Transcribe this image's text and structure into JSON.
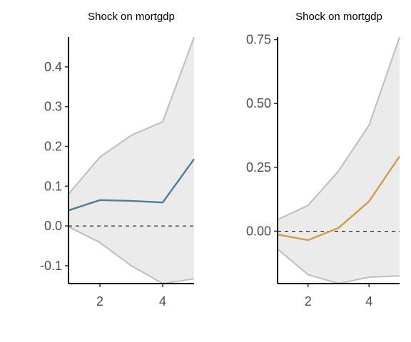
{
  "chart_data": [
    {
      "type": "line",
      "title": "Shock on mortgdp",
      "x": [
        1,
        2,
        3,
        4,
        5
      ],
      "xticks": [
        "2",
        "4"
      ],
      "xtick_values": [
        2,
        4
      ],
      "xlim": [
        1,
        5
      ],
      "ylim": [
        -0.145,
        0.475
      ],
      "yticks": [
        "-0.1",
        "0.0",
        "0.1",
        "0.2",
        "0.3",
        "0.4"
      ],
      "ytick_values": [
        -0.1,
        0.0,
        0.1,
        0.2,
        0.3,
        0.4
      ],
      "zero_line": 0,
      "series": [
        {
          "values": [
            0.039,
            0.065,
            0.063,
            0.059,
            0.168
          ],
          "color": "#4e7a9b"
        }
      ],
      "band": {
        "upper": [
          0.08,
          0.173,
          0.228,
          0.262,
          0.475
        ],
        "lower": [
          -0.002,
          -0.042,
          -0.1,
          -0.145,
          -0.133
        ],
        "fill": "#ebebeb",
        "stroke": "#bebebe"
      }
    },
    {
      "type": "line",
      "title": "Shock on mortgdp",
      "x": [
        1,
        2,
        3,
        4,
        5
      ],
      "xticks": [
        "2",
        "4"
      ],
      "xtick_values": [
        2,
        4
      ],
      "xlim": [
        1,
        5
      ],
      "ylim": [
        -0.205,
        0.76
      ],
      "yticks": [
        "0.00",
        "0.25",
        "0.50",
        "0.75"
      ],
      "ytick_values": [
        0.0,
        0.25,
        0.5,
        0.75
      ],
      "zero_line": 0,
      "series": [
        {
          "values": [
            -0.013,
            -0.035,
            0.013,
            0.117,
            0.293
          ],
          "color": "#d4994a"
        }
      ],
      "band": {
        "upper": [
          0.045,
          0.101,
          0.236,
          0.415,
          0.76
        ],
        "lower": [
          -0.07,
          -0.17,
          -0.205,
          -0.18,
          -0.175
        ],
        "fill": "#ebebeb",
        "stroke": "#bebebe"
      }
    }
  ]
}
